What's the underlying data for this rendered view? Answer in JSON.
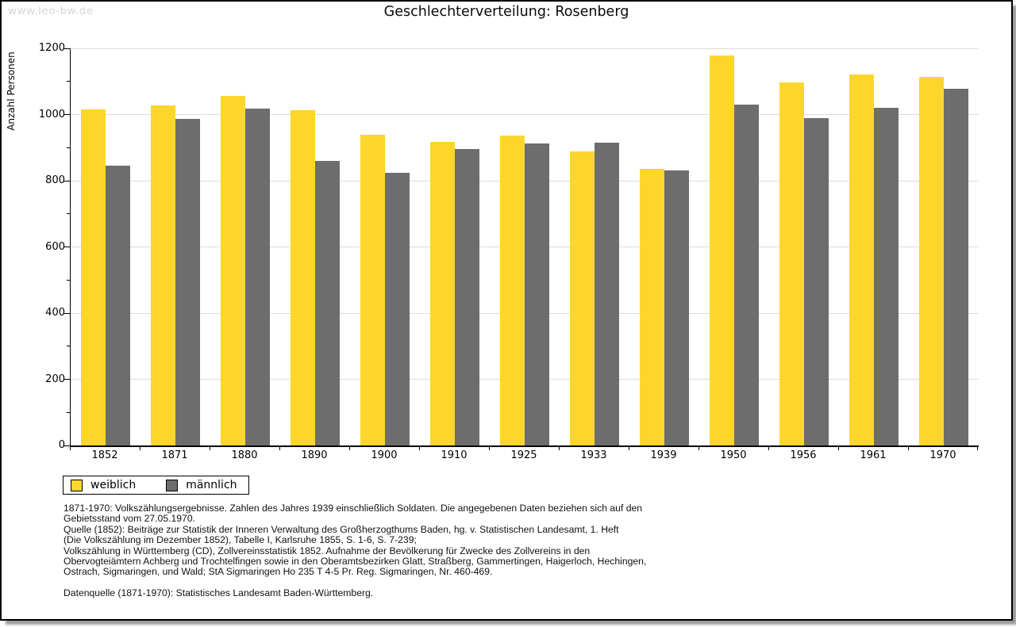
{
  "watermark": "www.leo-bw.de",
  "title": "Geschlechterverteilung: Rosenberg",
  "chart_data": {
    "type": "bar",
    "title": "Geschlechterverteilung: Rosenberg",
    "xlabel": "",
    "ylabel": "Anzahl Personen",
    "ylim": [
      0,
      1200
    ],
    "ytick_major_step": 200,
    "ytick_minor_step": 100,
    "grid": true,
    "legend_position": "bottom-left",
    "categories": [
      "1852",
      "1871",
      "1880",
      "1890",
      "1900",
      "1910",
      "1925",
      "1933",
      "1939",
      "1950",
      "1956",
      "1961",
      "1970"
    ],
    "series": [
      {
        "name": "weiblich",
        "color": "#fcd62d",
        "values": [
          1015,
          1028,
          1056,
          1013,
          938,
          917,
          936,
          888,
          835,
          1178,
          1096,
          1121,
          1113
        ]
      },
      {
        "name": "männlich",
        "color": "#6d6d6d",
        "values": [
          845,
          987,
          1018,
          861,
          823,
          895,
          912,
          915,
          832,
          1030,
          990,
          1020,
          1077
        ]
      }
    ]
  },
  "legend": {
    "items": [
      {
        "label": "weiblich",
        "color": "#fcd62d"
      },
      {
        "label": "männlich",
        "color": "#6d6d6d"
      }
    ]
  },
  "footer": {
    "lines": [
      "1871-1970: Volkszählungsergebnisse. Zahlen des Jahres 1939 einschließlich Soldaten. Die angegebenen Daten beziehen sich auf den",
      "Gebietsstand vom 27.05.1970.",
      "Quelle (1852): Beiträge zur Statistik der Inneren Verwaltung des Großherzogthums Baden, hg. v. Statistischen Landesamt, 1. Heft",
      "(Die Volkszählung im Dezember 1852), Tabelle I, Karlsruhe 1855, S. 1-6, S. 7-239;",
      "Volkszählung in Württemberg (CD), Zollvereinsstatistik 1852. Aufnahme der Bevölkerung für Zwecke des Zollvereins in den",
      "Obervogteiämtern Achberg und Trochtelfingen sowie in den Oberamtsbezirken Glatt, Straßberg, Gammertingen, Haigerloch, Hechingen,",
      "Ostrach, Sigmaringen, und Wald; StA Sigmaringen Ho 235 T 4-5 Pr. Reg. Sigmaringen, Nr. 460-469."
    ],
    "datasource": "Datenquelle (1871-1970): Statistisches Landesamt Baden-Württemberg."
  },
  "colors": {
    "weiblich": "#fcd62d",
    "männlich": "#6d6d6d",
    "gridline": "#dcdcdc",
    "axis": "#000000",
    "watermark": "#d7d7d7",
    "frame_shadow": "#9b9b9b"
  }
}
